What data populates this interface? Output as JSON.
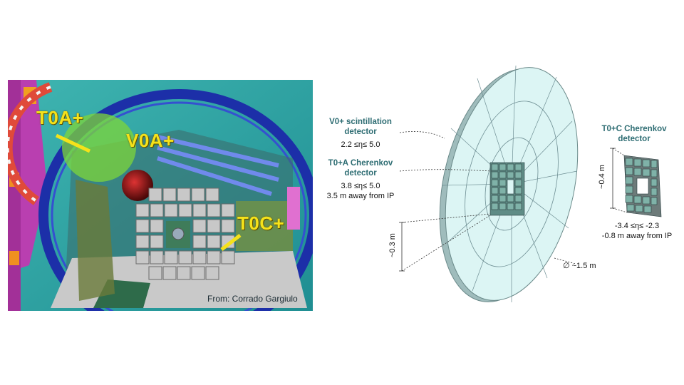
{
  "render_panel": {
    "labels": {
      "t0a": "T0A+",
      "v0a": "V0A+",
      "t0c": "T0C+"
    },
    "credit": "From: Corrado Gargiulo"
  },
  "schematic": {
    "v0_label_title": "V0+ scintillation\ndetector",
    "v0_label_range": "2.2 ≤η≤ 5.0",
    "t0a_label_title": "T0+A Cherenkov\ndetector",
    "t0a_label_range": "3.8 ≤η≤ 5.0",
    "t0a_label_distance": "3.5 m away from IP",
    "t0c_label_title": "T0+C Cherenkov\ndetector",
    "t0c_label_range": "-3.4 ≤η≤ -2.3",
    "t0c_label_distance": "-0.8 m away from IP",
    "dim_small": "~0.3 m",
    "dim_diameter": "∅ ~1.5 m",
    "dim_t0c": "~0.4 m"
  },
  "colors": {
    "label_yellow": "#f5e21a",
    "detector_teal": "#2e6d73",
    "disk_fill": "#d8f3f2",
    "background_teal": "#2a9c9a"
  }
}
